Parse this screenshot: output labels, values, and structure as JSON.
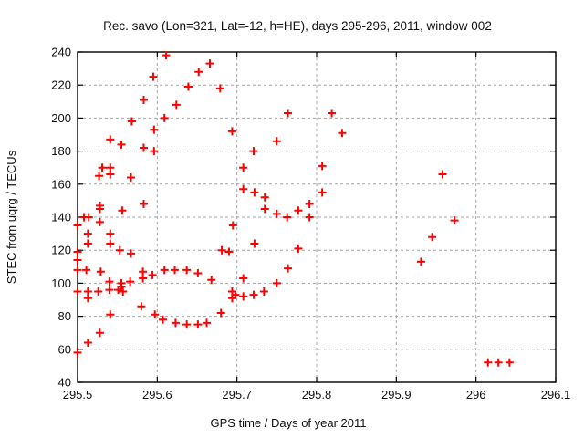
{
  "chart_data": {
    "type": "scatter",
    "title": "Rec. savo (Lon=321, Lat=-12, h=HE), days 295-296, 2011, window 002",
    "xlabel": "GPS time / Days of year 2011",
    "ylabel": "STEC from uqrg / TECUs",
    "xlim": [
      295.5,
      296.1
    ],
    "ylim": [
      40,
      240
    ],
    "xticks": {
      "values": [
        295.5,
        295.6,
        295.7,
        295.8,
        295.9,
        296.0,
        296.1
      ],
      "labels": [
        "295.5",
        "295.6",
        "295.7",
        "295.8",
        "295.9",
        "296",
        "296.1"
      ]
    },
    "yticks": {
      "values": [
        40,
        60,
        80,
        100,
        120,
        140,
        160,
        180,
        200,
        220,
        240
      ],
      "labels": [
        "40",
        "60",
        "80",
        "100",
        "120",
        "140",
        "160",
        "180",
        "200",
        "220",
        "240"
      ]
    },
    "grid": true,
    "legend": "none",
    "marker": {
      "style": "plus",
      "color": "#ff0000",
      "size": 9
    },
    "grid_color": "#a6a6a6",
    "border_color": "#000000",
    "background_color": "#ffffff",
    "points": [
      [
        295.611,
        238
      ],
      [
        295.666,
        233
      ],
      [
        295.652,
        228
      ],
      [
        295.595,
        225
      ],
      [
        295.639,
        219
      ],
      [
        295.679,
        218
      ],
      [
        295.583,
        211
      ],
      [
        295.624,
        208
      ],
      [
        295.609,
        200
      ],
      [
        295.568,
        198
      ],
      [
        295.596,
        193
      ],
      [
        295.694,
        192
      ],
      [
        295.541,
        187
      ],
      [
        295.555,
        184
      ],
      [
        295.583,
        182
      ],
      [
        295.596,
        180
      ],
      [
        295.764,
        203
      ],
      [
        295.819,
        203
      ],
      [
        295.832,
        191
      ],
      [
        295.75,
        186
      ],
      [
        295.721,
        180
      ],
      [
        295.531,
        170
      ],
      [
        295.541,
        170
      ],
      [
        295.527,
        165
      ],
      [
        295.541,
        166
      ],
      [
        295.567,
        164
      ],
      [
        295.708,
        170
      ],
      [
        295.807,
        171
      ],
      [
        295.708,
        157
      ],
      [
        295.722,
        155
      ],
      [
        295.735,
        152
      ],
      [
        295.807,
        155
      ],
      [
        295.791,
        148
      ],
      [
        295.735,
        145
      ],
      [
        295.75,
        142
      ],
      [
        295.777,
        144
      ],
      [
        295.763,
        140
      ],
      [
        295.791,
        140
      ],
      [
        295.528,
        147
      ],
      [
        295.528,
        145
      ],
      [
        295.556,
        144
      ],
      [
        295.583,
        148
      ],
      [
        295.508,
        140
      ],
      [
        295.514,
        140
      ],
      [
        295.528,
        137
      ],
      [
        295.5,
        135
      ],
      [
        295.695,
        135
      ],
      [
        295.513,
        130
      ],
      [
        295.541,
        130
      ],
      [
        295.513,
        124
      ],
      [
        295.541,
        124
      ],
      [
        295.5,
        119
      ],
      [
        295.5,
        114
      ],
      [
        295.553,
        120
      ],
      [
        295.567,
        118
      ],
      [
        295.681,
        120
      ],
      [
        295.69,
        119
      ],
      [
        295.722,
        124
      ],
      [
        295.777,
        121
      ],
      [
        295.5,
        108
      ],
      [
        295.511,
        108
      ],
      [
        295.529,
        107
      ],
      [
        295.582,
        107
      ],
      [
        295.594,
        105
      ],
      [
        295.609,
        108
      ],
      [
        295.622,
        108
      ],
      [
        295.637,
        108
      ],
      [
        295.651,
        106
      ],
      [
        295.668,
        102
      ],
      [
        295.582,
        103
      ],
      [
        295.54,
        101
      ],
      [
        295.555,
        100
      ],
      [
        295.555,
        98
      ],
      [
        295.566,
        101
      ],
      [
        295.5,
        95
      ],
      [
        295.513,
        95
      ],
      [
        295.526,
        95
      ],
      [
        295.54,
        96
      ],
      [
        295.551,
        96
      ],
      [
        295.557,
        95
      ],
      [
        295.513,
        91
      ],
      [
        295.694,
        95
      ],
      [
        295.694,
        91
      ],
      [
        295.698,
        93
      ],
      [
        295.708,
        92
      ],
      [
        295.708,
        103
      ],
      [
        295.721,
        93
      ],
      [
        295.734,
        95
      ],
      [
        295.75,
        100
      ],
      [
        295.764,
        109
      ],
      [
        295.58,
        86
      ],
      [
        295.541,
        81
      ],
      [
        295.597,
        81
      ],
      [
        295.607,
        78
      ],
      [
        295.623,
        76
      ],
      [
        295.637,
        75
      ],
      [
        295.651,
        75
      ],
      [
        295.662,
        76
      ],
      [
        295.68,
        82
      ],
      [
        295.528,
        70
      ],
      [
        295.513,
        64
      ],
      [
        295.5,
        58
      ],
      [
        295.931,
        113
      ],
      [
        295.945,
        128
      ],
      [
        295.958,
        166
      ],
      [
        295.973,
        138
      ],
      [
        296.015,
        52
      ],
      [
        296.028,
        52
      ],
      [
        296.042,
        52
      ]
    ]
  }
}
